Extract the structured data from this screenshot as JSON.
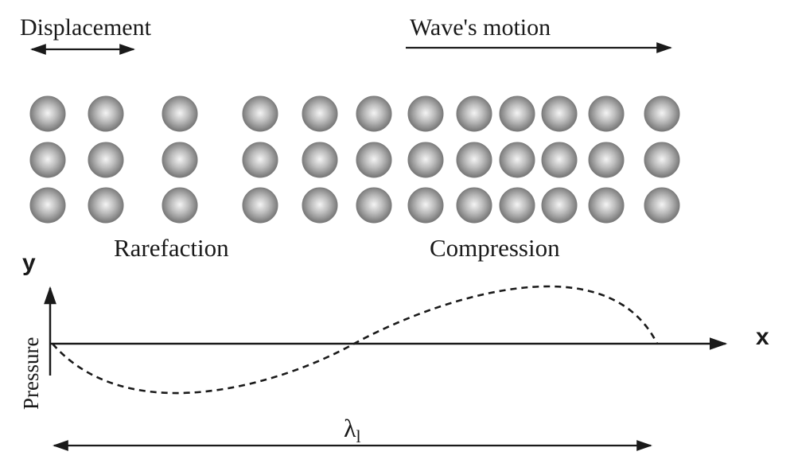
{
  "labels": {
    "displacement": "Displacement",
    "wave_motion": "Wave's motion",
    "rarefaction": "Rarefaction",
    "compression": "Compression",
    "y_axis": "y",
    "x_axis": "x",
    "pressure": "Pressure",
    "wavelength_symbol": "λ",
    "wavelength_subscript": "l"
  },
  "particles": {
    "rows": 3,
    "columns": 12,
    "color": "#8a8a8a"
  },
  "colors": {
    "ink": "#1a1a1a",
    "background": "#ffffff"
  }
}
